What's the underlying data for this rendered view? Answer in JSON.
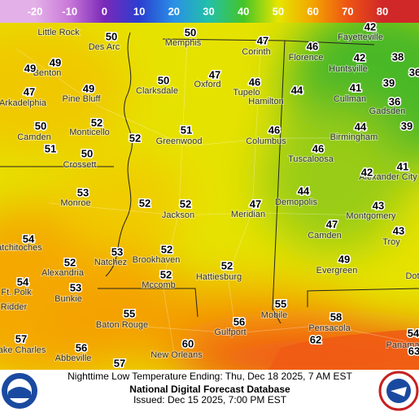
{
  "legend": {
    "ticks": [
      -20,
      -10,
      0,
      10,
      20,
      30,
      40,
      50,
      60,
      70,
      80
    ],
    "colors": [
      "#e4b0e8",
      "#c878d8",
      "#7a28b8",
      "#2a3ed0",
      "#2a90e6",
      "#22c0a8",
      "#44c428",
      "#e6e600",
      "#f2a400",
      "#ee5414",
      "#d02828"
    ]
  },
  "cities": [
    "Little Rock",
    "Des Arc",
    "Memphis",
    "Corinth",
    "Fayetteville",
    "Florence",
    "Benton",
    "Oxford",
    "Tupelo",
    "Huntsville",
    "Arkadelphia",
    "Pine Bluff",
    "Clarksdale",
    "Hamilton",
    "Cullman",
    "Gadsden",
    "Camden",
    "Monticello",
    "Greenwood",
    "Columbus",
    "Birmingham",
    "Crossett",
    "Tuscaloosa",
    "Alexander City",
    "Monroe",
    "Jackson",
    "Meridian",
    "Demopolis",
    "Montgomery",
    "Camden",
    "Troy",
    "Natchitoches",
    "Natchez",
    "Brookhaven",
    "Alexandria",
    "Evergreen",
    "Ft. Polk",
    "Mccomb",
    "Hattiesburg",
    "Bunkie",
    "Ridder",
    "Baton Rouge",
    "Gulfport",
    "Mobile",
    "Pensacola",
    "Lake Charles",
    "Abbeville",
    "New Orleans",
    "Panama",
    "Dot"
  ],
  "temperatures": [
    42,
    50,
    50,
    47,
    46,
    42,
    38,
    49,
    49,
    47,
    46,
    36,
    39,
    41,
    50,
    49,
    47,
    44,
    36,
    52,
    52,
    51,
    46,
    44,
    39,
    50,
    51,
    50,
    46,
    42,
    41,
    53,
    52,
    52,
    47,
    44,
    43,
    47,
    43,
    54,
    53,
    52,
    49,
    52,
    52,
    52,
    54,
    53,
    55,
    55,
    58,
    56,
    62,
    57,
    60,
    56,
    57,
    54,
    63
  ],
  "footer": {
    "product": "Nighttime Low Temperature Ending: Thu, Dec 18 2025, 7 AM EST",
    "source": "National Digital Forecast Database",
    "issued": "Issued: Dec 15 2025, 7:00 PM EST"
  }
}
